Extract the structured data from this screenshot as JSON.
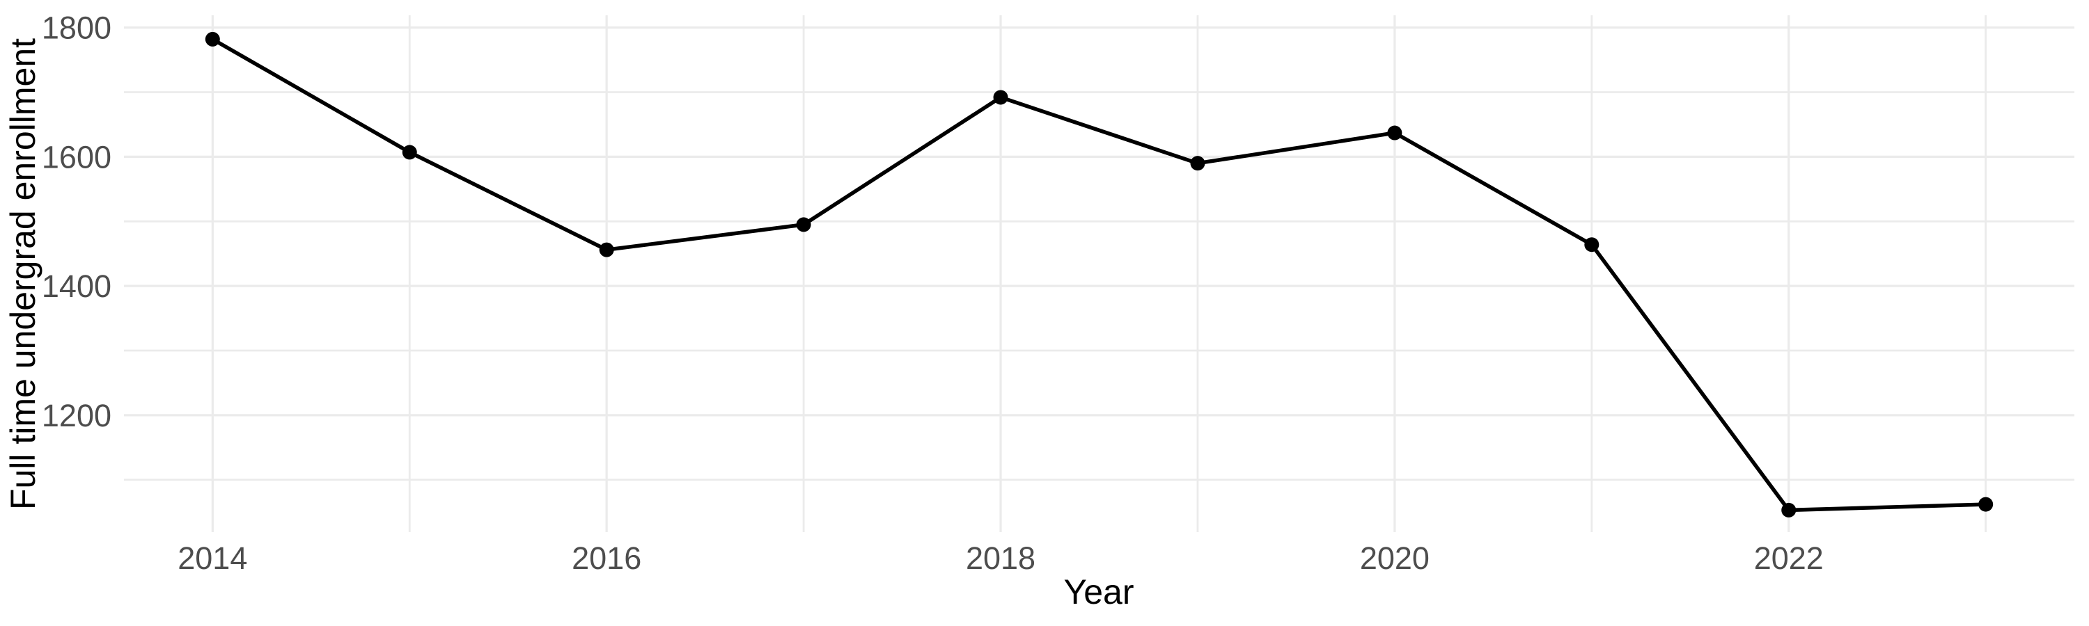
{
  "figure": {
    "background_color": "#ffffff",
    "grid_color": "#ebebeb",
    "line_color": "#000000",
    "point_color": "#000000",
    "tick_label_color": "#4d4d4d",
    "axis_title_color": "#000000"
  },
  "chart_data": {
    "type": "line",
    "title": "",
    "xlabel": "Year",
    "ylabel": "Full time undergrad enrollment",
    "x": [
      2014,
      2015,
      2016,
      2017,
      2018,
      2019,
      2020,
      2021,
      2022,
      2023
    ],
    "series": [
      {
        "name": "Full time undergrad enrollment",
        "values": [
          1782,
          1607,
          1456,
          1495,
          1692,
          1590,
          1637,
          1464,
          1053,
          1062
        ]
      }
    ],
    "marker": "point",
    "grid": true,
    "legend": false,
    "x_major_ticks": [
      2014,
      2016,
      2018,
      2020,
      2022
    ],
    "x_major_tick_labels": [
      "2014",
      "2016",
      "2018",
      "2020",
      "2022"
    ],
    "x_minor_ticks": [
      2015,
      2017,
      2019,
      2021,
      2023
    ],
    "y_major_ticks": [
      1200,
      1400,
      1600,
      1800
    ],
    "y_major_tick_labels": [
      "1200",
      "1400",
      "1600",
      "1800"
    ],
    "y_minor_ticks": [
      1100,
      1300,
      1500,
      1700
    ],
    "xlim": [
      2013.55,
      2023.45
    ],
    "ylim": [
      1019,
      1819
    ]
  }
}
